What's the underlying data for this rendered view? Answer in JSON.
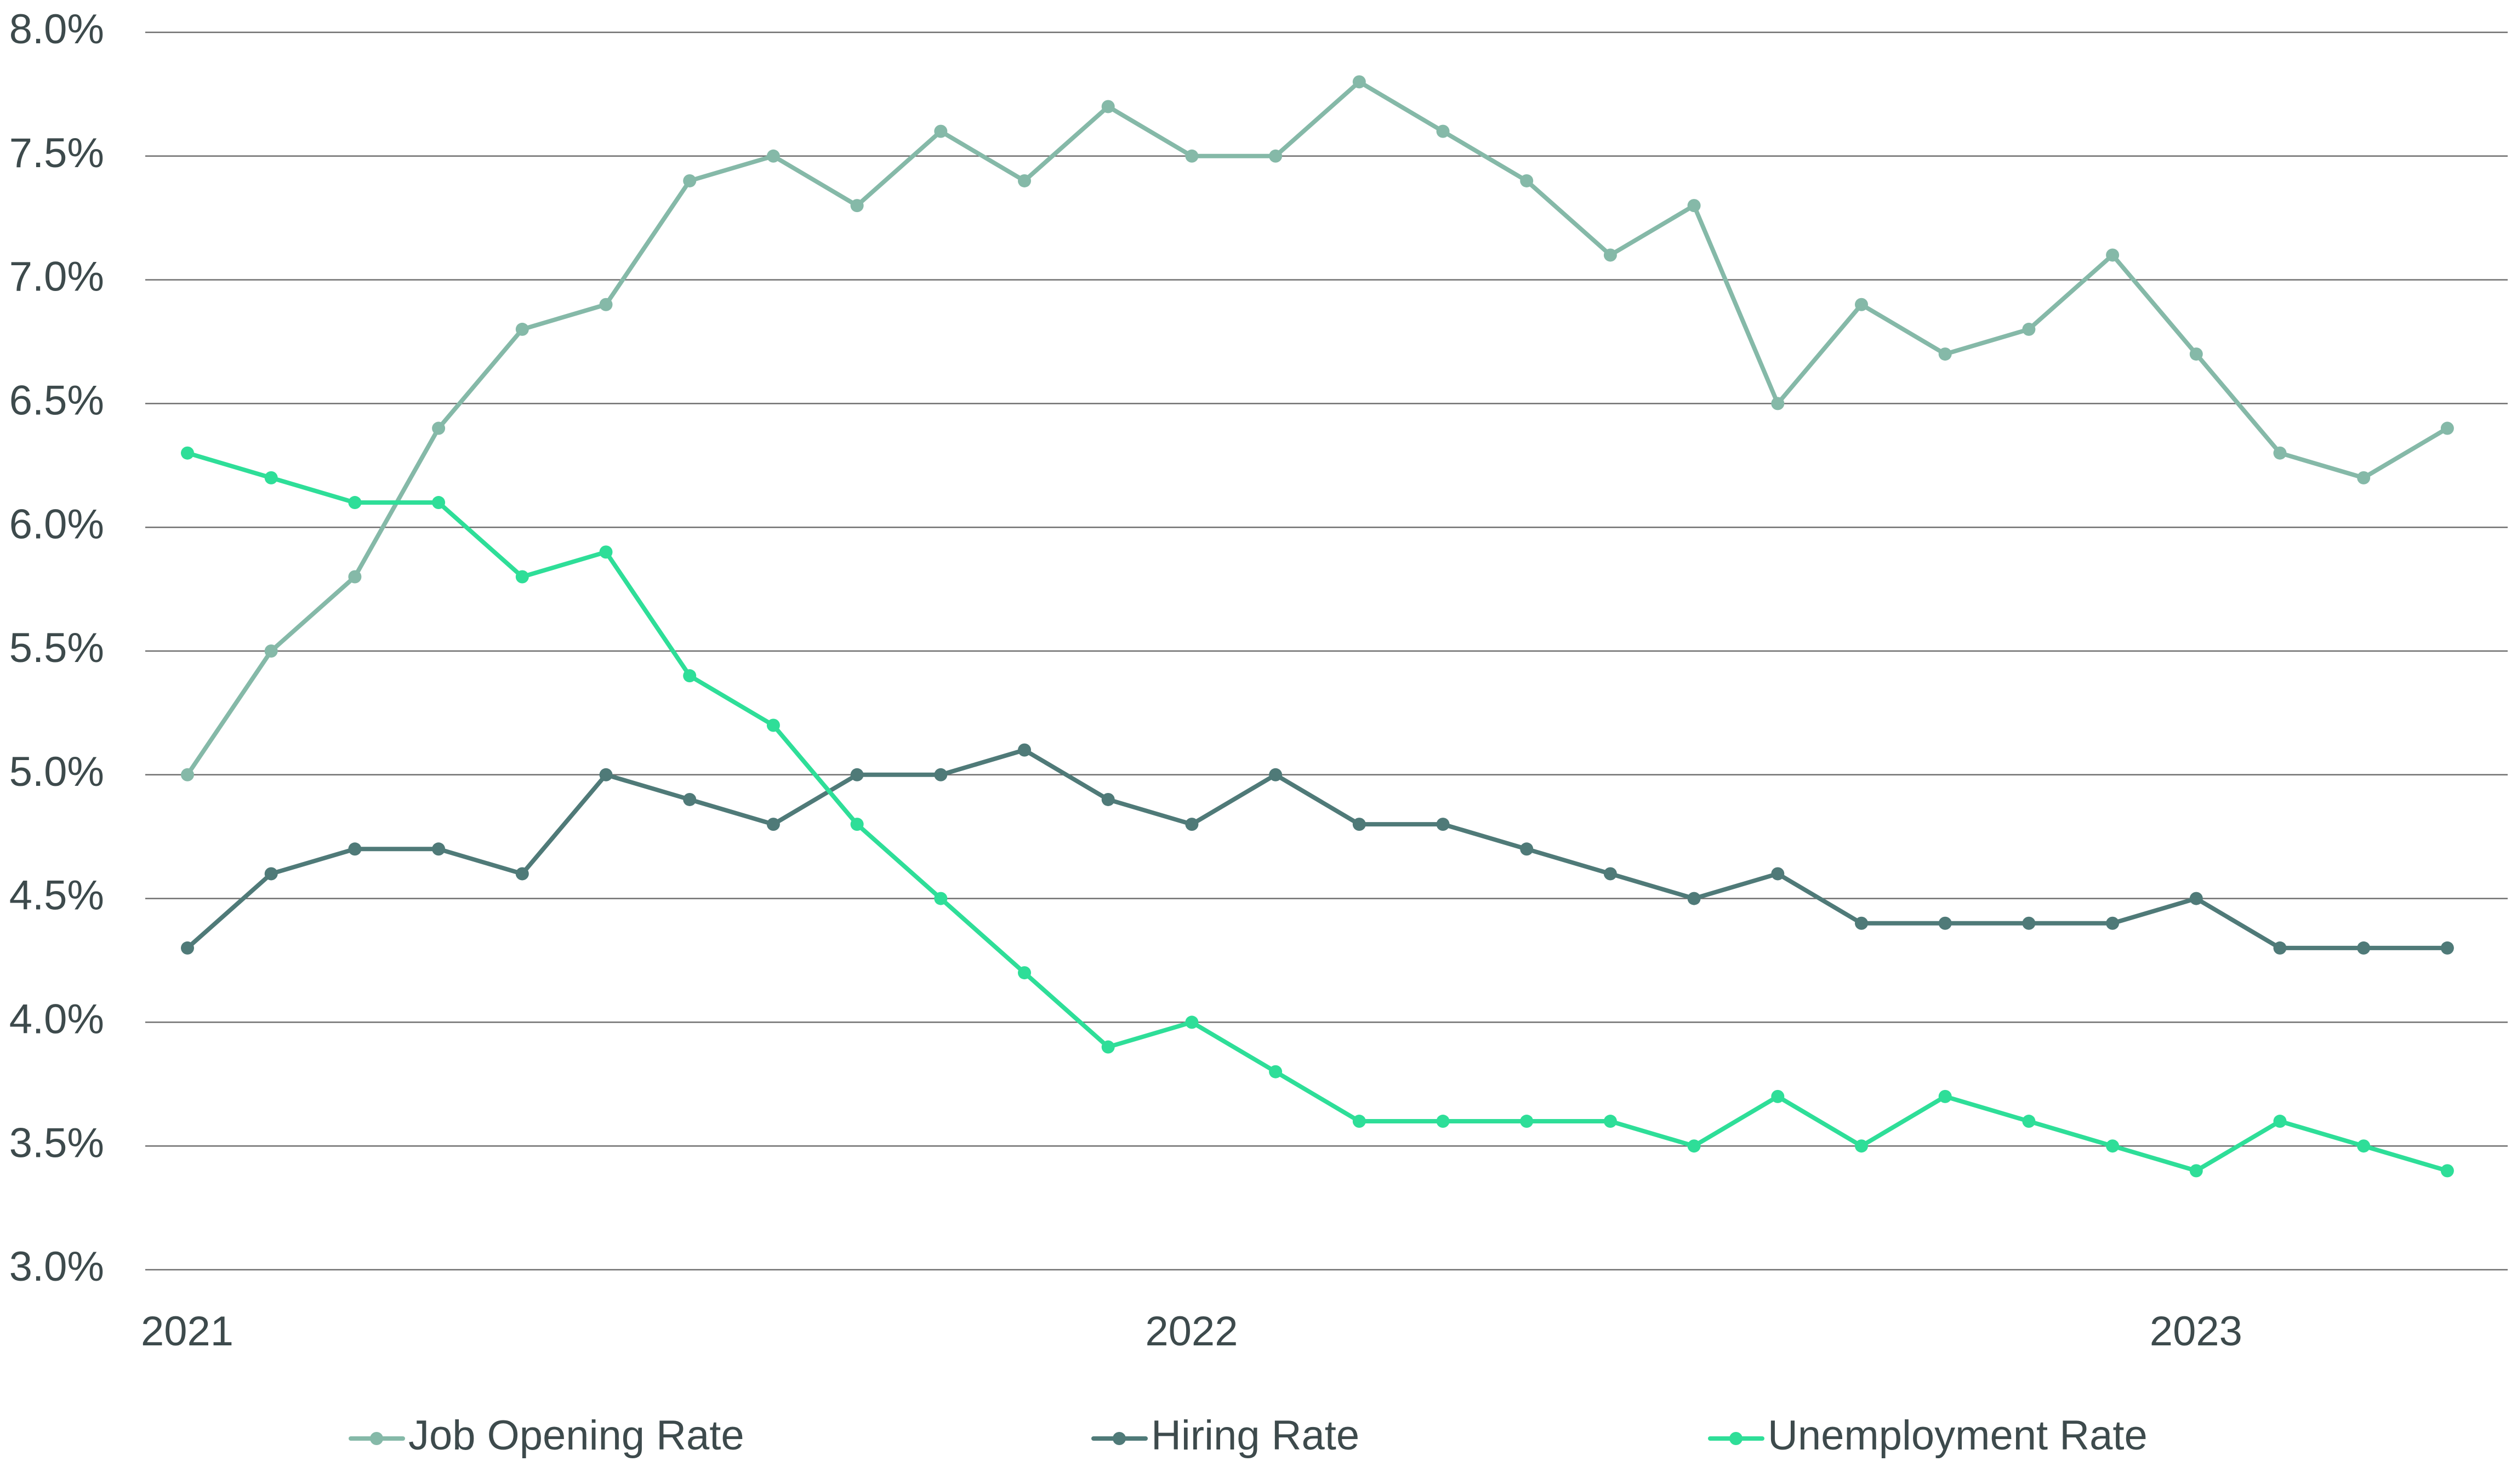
{
  "chart_data": {
    "type": "line",
    "x_start_label": "2021",
    "x_tick_labels": [
      "2021",
      "2022",
      "2023"
    ],
    "y_tick_labels": [
      "3.0%",
      "3.5%",
      "4.0%",
      "4.5%",
      "5.0%",
      "5.5%",
      "6.0%",
      "6.5%",
      "7.0%",
      "7.5%",
      "8.0%"
    ],
    "ylim": [
      3.0,
      8.0
    ],
    "y_ticks": [
      3.0,
      3.5,
      4.0,
      4.5,
      5.0,
      5.5,
      6.0,
      6.5,
      7.0,
      7.5,
      8.0
    ],
    "grid": "horizontal",
    "legend_position": "bottom",
    "series": [
      {
        "name": "Job Opening Rate",
        "color": "#85b9a8",
        "values": [
          5.0,
          5.5,
          5.8,
          6.4,
          6.8,
          6.9,
          7.4,
          7.5,
          7.3,
          7.6,
          7.4,
          7.7,
          7.5,
          7.5,
          7.8,
          7.6,
          7.4,
          7.1,
          7.3,
          6.5,
          6.9,
          6.7,
          6.8,
          7.1,
          6.7,
          6.3,
          6.2,
          6.4
        ]
      },
      {
        "name": "Hiring Rate",
        "color": "#4f7a78",
        "values": [
          4.3,
          4.6,
          4.7,
          4.7,
          4.6,
          5.0,
          4.9,
          4.8,
          5.0,
          5.0,
          5.1,
          4.9,
          4.8,
          5.0,
          4.8,
          4.8,
          4.7,
          4.6,
          4.5,
          4.6,
          4.4,
          4.4,
          4.4,
          4.4,
          4.5,
          4.3,
          4.3,
          4.3
        ]
      },
      {
        "name": "Unemployment Rate",
        "color": "#2ede98",
        "values": [
          6.3,
          6.2,
          6.1,
          6.1,
          5.8,
          5.9,
          5.4,
          5.2,
          4.8,
          4.5,
          4.2,
          3.9,
          4.0,
          3.8,
          3.6,
          3.6,
          3.6,
          3.6,
          3.5,
          3.7,
          3.5,
          3.7,
          3.6,
          3.5,
          3.4,
          3.6,
          3.5,
          3.4
        ]
      }
    ]
  }
}
